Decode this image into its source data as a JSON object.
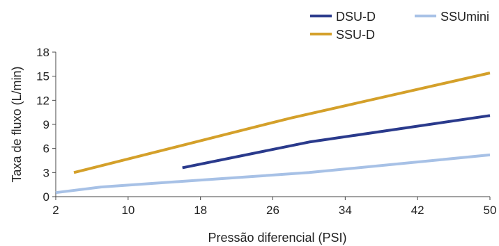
{
  "chart_data": {
    "type": "line",
    "title": "",
    "xlabel": "Pressão diferencial (PSI)",
    "ylabel": "Taxa de fluxo (L/min)",
    "xlim": [
      2,
      50
    ],
    "ylim": [
      0,
      18
    ],
    "xticks": [
      2,
      10,
      18,
      26,
      34,
      42,
      50
    ],
    "yticks": [
      0,
      3,
      6,
      9,
      12,
      15,
      18
    ],
    "grid": false,
    "legend_position": "top-right",
    "series": [
      {
        "name": "DSU-D",
        "color": "#2a3a8c",
        "x": [
          16,
          30,
          50
        ],
        "y": [
          3.6,
          6.8,
          10.1
        ]
      },
      {
        "name": "SSU-D",
        "color": "#d4a02a",
        "x": [
          4,
          28,
          50
        ],
        "y": [
          3.0,
          9.8,
          15.4
        ]
      },
      {
        "name": "SSUmini",
        "color": "#a7c1e6",
        "x": [
          2,
          7,
          30,
          50
        ],
        "y": [
          0.5,
          1.2,
          3.0,
          5.2
        ]
      }
    ]
  }
}
